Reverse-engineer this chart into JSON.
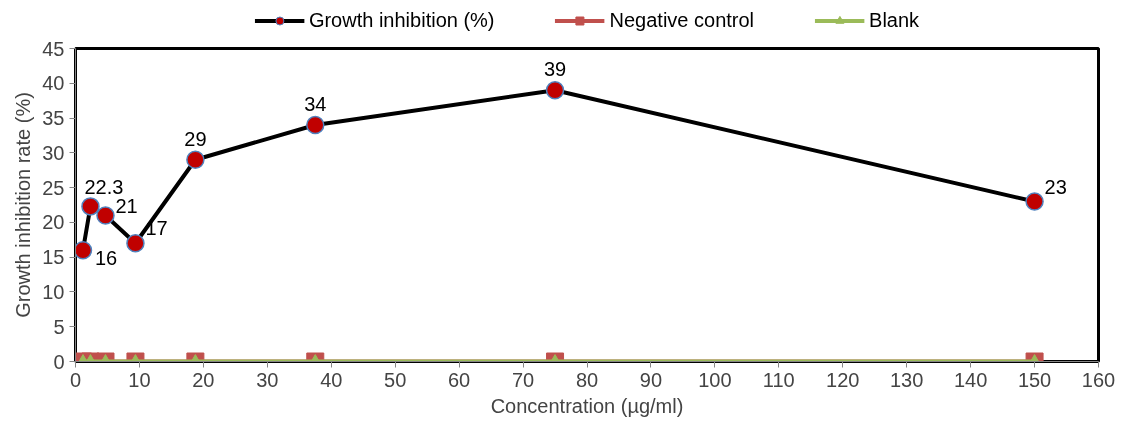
{
  "chart_data": {
    "type": "line",
    "xlabel": "Concentration (µg/ml)",
    "ylabel": "Growth inhibition rate (%)",
    "x": [
      1.17,
      2.34,
      4.69,
      9.375,
      18.75,
      37.5,
      75,
      150
    ],
    "xlim": [
      0,
      160
    ],
    "xticks": [
      0,
      10,
      20,
      30,
      40,
      50,
      60,
      70,
      80,
      90,
      100,
      110,
      120,
      130,
      140,
      150,
      160
    ],
    "ylim": [
      0,
      45
    ],
    "yticks": [
      0,
      5,
      10,
      15,
      20,
      25,
      30,
      35,
      40,
      45
    ],
    "grid": false,
    "legend": "top",
    "line_style": "solid",
    "series": [
      {
        "name": "Growth inhibition (%)",
        "color": "#000000",
        "colors": [
          "#c00000",
          "#c00000",
          "#c00000",
          "#c00000",
          "#c00000",
          "#c00000",
          "#c00000",
          "#c00000"
        ],
        "marker": "circle",
        "values": [
          16,
          22.3,
          21,
          17,
          29,
          34,
          39,
          23
        ],
        "value_labels": [
          "16",
          "22.3",
          "21",
          "17",
          "29",
          "34",
          "39",
          "23"
        ]
      },
      {
        "name": "Negative control",
        "color": "#c0504d",
        "marker": "square",
        "values": [
          0,
          0,
          0,
          0,
          0,
          0,
          0,
          0
        ]
      },
      {
        "name": "Blank",
        "color": "#9bbb59",
        "marker": "triangle",
        "values": [
          0,
          0,
          0,
          0,
          0,
          0,
          0,
          0
        ]
      }
    ]
  }
}
